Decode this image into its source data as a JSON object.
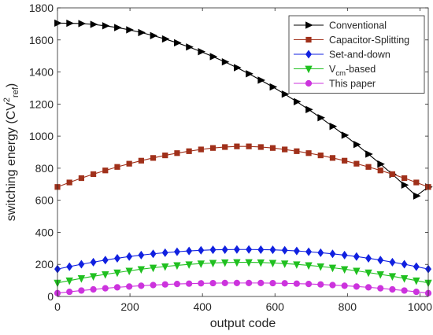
{
  "chart_data": {
    "type": "line",
    "xlabel": "output code",
    "ylabel": "switching energy (CV",
    "ylabel_sup": "2",
    "ylabel_sub": "ref",
    "ylabel_close": ")",
    "xlim": [
      0,
      1023
    ],
    "ylim": [
      0,
      1800
    ],
    "xticks": [
      0,
      200,
      400,
      600,
      800,
      1000
    ],
    "yticks": [
      0,
      200,
      400,
      600,
      800,
      1000,
      1200,
      1400,
      1600,
      1800
    ],
    "grid": false,
    "legend_position": "top-right",
    "x": [
      0,
      33,
      66,
      99,
      132,
      165,
      198,
      231,
      264,
      297,
      330,
      363,
      396,
      429,
      462,
      495,
      528,
      561,
      594,
      627,
      660,
      693,
      726,
      759,
      792,
      825,
      858,
      891,
      924,
      957,
      990,
      1023
    ],
    "series": [
      {
        "name": "Conventional",
        "color": "#000000",
        "marker": "triangle-right",
        "values": [
          1705,
          1704,
          1702,
          1697,
          1688,
          1677,
          1663,
          1646,
          1627,
          1606,
          1582,
          1556,
          1527,
          1496,
          1463,
          1427,
          1389,
          1349,
          1307,
          1262,
          1215,
          1166,
          1115,
          1061,
          1006,
          948,
          888,
          826,
          762,
          695,
          627,
          683
        ]
      },
      {
        "name": "Capacitor-Splitting",
        "color": "#a0301a",
        "marker": "square",
        "values": [
          683,
          711,
          738,
          763,
          786,
          808,
          828,
          847,
          864,
          880,
          894,
          906,
          917,
          926,
          932,
          936,
          936,
          932,
          926,
          917,
          906,
          894,
          880,
          864,
          847,
          828,
          808,
          786,
          763,
          738,
          711,
          683
        ]
      },
      {
        "name": "Set-and-down",
        "color": "#1020e0",
        "marker": "diamond",
        "values": [
          171,
          186,
          201,
          214,
          227,
          238,
          249,
          258,
          266,
          273,
          279,
          284,
          288,
          291,
          292,
          293,
          293,
          292,
          291,
          288,
          284,
          279,
          273,
          266,
          258,
          249,
          238,
          227,
          214,
          201,
          186,
          171
        ]
      },
      {
        "name": "V",
        "name_sub": "cm",
        "name_suffix": "-based",
        "color": "#20c020",
        "marker": "triangle-down",
        "values": [
          85,
          99,
          113,
          126,
          138,
          149,
          160,
          170,
          179,
          187,
          194,
          200,
          205,
          209,
          212,
          213,
          213,
          212,
          209,
          205,
          200,
          194,
          187,
          179,
          170,
          160,
          149,
          138,
          126,
          113,
          99,
          85
        ]
      },
      {
        "name": "This paper",
        "color": "#cc33dd",
        "marker": "circle",
        "values": [
          21,
          29,
          37,
          44,
          51,
          57,
          62,
          67,
          71,
          75,
          78,
          80,
          82,
          83,
          84,
          84,
          84,
          84,
          83,
          82,
          80,
          78,
          75,
          71,
          67,
          62,
          57,
          51,
          44,
          37,
          29,
          21
        ]
      }
    ]
  }
}
